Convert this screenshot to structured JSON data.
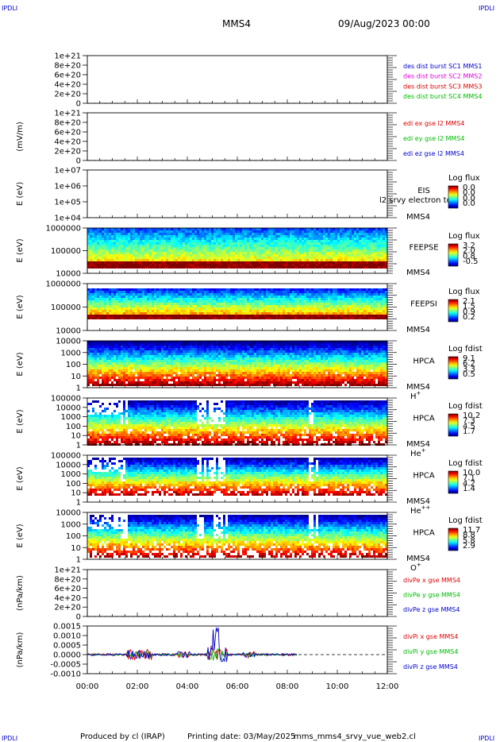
{
  "header": {
    "corner_label": "IPDLI",
    "title": "MMS4",
    "date": "09/Aug/2023 00:00"
  },
  "footer": {
    "produced": "Produced by cl (IRAP)",
    "printing": "Printing date: 03/May/2025",
    "script": "mms_mms4_srvy_vue_web2.cl"
  },
  "colors": {
    "red": "#dd0000",
    "green": "#00bb00",
    "blue": "#0000cc",
    "magenta": "#dd00dd"
  },
  "chart_data": [
    {
      "type": "line",
      "ylabel": "",
      "yticks": [
        "1e+21",
        "8e+20",
        "6e+20",
        "4e+20",
        "2e+20",
        "0"
      ],
      "legend": [
        {
          "text": "des dist burst SC1 MMS1",
          "color": "blue"
        },
        {
          "text": "des dist burst SC2 MMS2",
          "color": "magenta"
        },
        {
          "text": "des dist burst SC3 MMS3",
          "color": "red"
        },
        {
          "text": "des dist burst SC4 MMS4",
          "color": "green"
        }
      ]
    },
    {
      "type": "line",
      "ylabel": "(mV/m)",
      "yticks": [
        "1e+21",
        "8e+20",
        "6e+20",
        "4e+20",
        "2e+20",
        "0"
      ],
      "legend": [
        {
          "text": "edi ex gse l2 MMS4",
          "color": "red"
        },
        {
          "text": "edi ey gse l2 MMS4",
          "color": "green"
        },
        {
          "text": "edi ez gse l2 MMS4",
          "color": "blue"
        }
      ]
    },
    {
      "type": "heatmap",
      "ylabel": "E (eV)",
      "yticks": [
        "1e+07",
        "1e+06",
        "1e+05",
        "1e+04"
      ],
      "inst": [
        "EIS",
        "MMS4"
      ],
      "overlay": "l2 srvy electron to",
      "cb_title": "Log flux",
      "cb_ticks": [
        "0.0",
        "0.0",
        "0.0",
        "0.0"
      ]
    },
    {
      "type": "heatmap",
      "ylabel": "E (eV)",
      "yticks": [
        "1000000",
        "100000",
        "10000"
      ],
      "inst": [
        "FEEPSE",
        "MMS4"
      ],
      "cb_title": "Log flux",
      "cb_ticks": [
        "3.2",
        "2.0",
        "0.8",
        "-0.5"
      ]
    },
    {
      "type": "heatmap",
      "ylabel": "E (eV)",
      "yticks": [
        "1000000",
        "100000",
        "10000"
      ],
      "inst": [
        "FEEPSI",
        "MMS4"
      ],
      "cb_title": "Log flux",
      "cb_ticks": [
        "2.1",
        "1.5",
        "0.9",
        "0.2"
      ]
    },
    {
      "type": "heatmap",
      "ylabel": "E (eV)",
      "yticks": [
        "10000",
        "1000",
        "100",
        "10",
        "1"
      ],
      "inst": [
        "HPCA",
        "MMS4"
      ],
      "ion": "H",
      "ion_sup": "+",
      "cb_title": "Log fdist",
      "cb_ticks": [
        "9.1",
        "6.2",
        "3.3",
        "0.5"
      ]
    },
    {
      "type": "heatmap",
      "ylabel": "E (eV)",
      "yticks": [
        "100000",
        "10000",
        "1000",
        "100",
        "10",
        "1"
      ],
      "inst": [
        "HPCA",
        "MMS4"
      ],
      "ion": "He",
      "ion_sup": "+",
      "cb_title": "Log fdist",
      "cb_ticks": [
        "10.2",
        "7.3",
        "4.5",
        "1.7"
      ]
    },
    {
      "type": "heatmap",
      "ylabel": "E (eV)",
      "yticks": [
        "100000",
        "10000",
        "1000",
        "100",
        "10",
        "1"
      ],
      "inst": [
        "HPCA",
        "MMS4"
      ],
      "ion": "He",
      "ion_sup": "++",
      "cb_title": "Log fdist",
      "cb_ticks": [
        "10.0",
        "7.1",
        "4.2",
        "1.4"
      ]
    },
    {
      "type": "heatmap",
      "ylabel": "E (eV)",
      "yticks": [
        "10000",
        "1000",
        "100",
        "10",
        "1"
      ],
      "inst": [
        "HPCA",
        "MMS4"
      ],
      "ion": "O",
      "ion_sup": "+",
      "cb_title": "Log fdist",
      "cb_ticks": [
        "11.7",
        "8.8",
        "5.8",
        "2.9"
      ]
    },
    {
      "type": "line",
      "ylabel": "(nPa/km)",
      "yticks": [
        "1e+21",
        "8e+20",
        "6e+20",
        "4e+20",
        "2e+20",
        "0"
      ],
      "legend": [
        {
          "text": "divPe x gse MMS4",
          "color": "red"
        },
        {
          "text": "divPe y gse MMS4",
          "color": "green"
        },
        {
          "text": "divPe z gse MMS4",
          "color": "blue"
        }
      ]
    },
    {
      "type": "line",
      "ylabel": "(nPa/km)",
      "yticks": [
        "0.0015",
        "0.0010",
        "0.0005",
        "0.0000",
        "-0.0005",
        "-0.0010"
      ],
      "legend": [
        {
          "text": "divPi x gse MMS4",
          "color": "red"
        },
        {
          "text": "divPi y gse MMS4",
          "color": "green"
        },
        {
          "text": "divPi z gse MMS4",
          "color": "blue"
        }
      ],
      "data_end_hour": 8.4
    }
  ],
  "xaxis": {
    "ticks": [
      "00:00",
      "02:00",
      "04:00",
      "06:00",
      "08:00",
      "10:00",
      "12:00"
    ]
  }
}
